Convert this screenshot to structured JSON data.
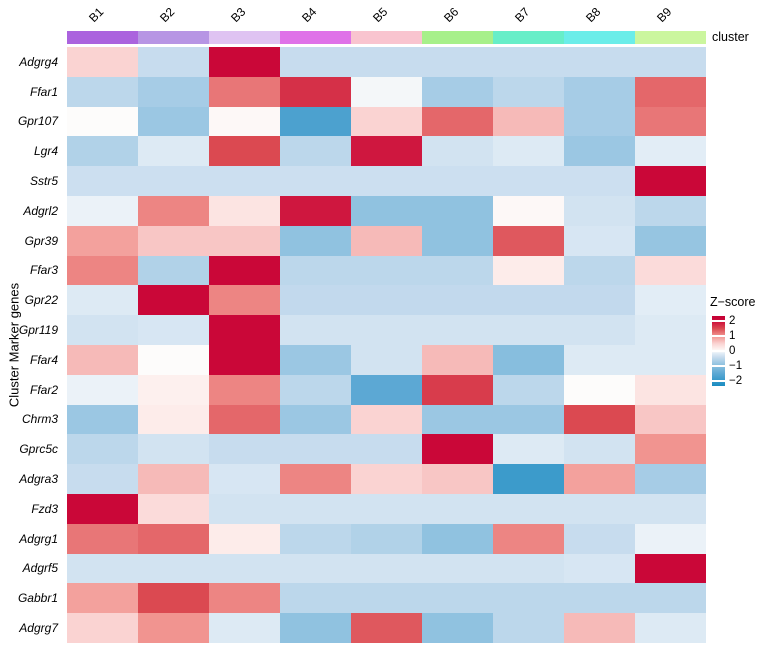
{
  "chart_data": {
    "type": "heatmap",
    "title": "",
    "xlabel": "",
    "ylabel": "Cluster Marker genes",
    "columns": [
      "B1",
      "B2",
      "B3",
      "B4",
      "B5",
      "B6",
      "B7",
      "B8",
      "B9"
    ],
    "cluster_annotation": {
      "label": "cluster",
      "colors": [
        "#AB63DE",
        "#B795E4",
        "#DFC3F2",
        "#DF72E8",
        "#F9C4CF",
        "#A7F08A",
        "#67EEC8",
        "#6BEDE9",
        "#CBF69E"
      ]
    },
    "rows": [
      "Adgrg4",
      "Ffar1",
      "Gpr107",
      "Lgr4",
      "Sstr5",
      "Adgrl2",
      "Gpr39",
      "Ffar3",
      "Gpr22",
      "Gpr119",
      "Ffar4",
      "Ffar2",
      "Chrm3",
      "Gprc5c",
      "Adgra3",
      "Fzd3",
      "Adgrg1",
      "Adgrf5",
      "Gabbr1",
      "Adgrg7"
    ],
    "values": [
      [
        0.5,
        -0.4,
        2.1,
        -0.4,
        -0.4,
        -0.4,
        -0.4,
        -0.4,
        -0.4
      ],
      [
        -0.5,
        -0.7,
        1.2,
        1.7,
        -0.05,
        -0.7,
        -0.5,
        -0.7,
        1.3
      ],
      [
        0.0,
        -0.8,
        0.05,
        -1.7,
        0.5,
        1.3,
        0.7,
        -0.7,
        1.2
      ],
      [
        -0.6,
        -0.2,
        1.5,
        -0.5,
        1.9,
        -0.3,
        -0.2,
        -0.8,
        -0.15
      ],
      [
        -0.35,
        -0.35,
        -0.35,
        -0.35,
        -0.35,
        -0.35,
        -0.35,
        -0.35,
        2.1
      ],
      [
        -0.1,
        1.1,
        0.3,
        1.9,
        -0.9,
        -0.9,
        0.05,
        -0.3,
        -0.5
      ],
      [
        0.9,
        0.6,
        0.6,
        -0.9,
        0.7,
        -0.9,
        1.4,
        -0.25,
        -0.85
      ],
      [
        1.1,
        -0.6,
        2.1,
        -0.5,
        -0.5,
        -0.5,
        0.2,
        -0.5,
        0.4
      ],
      [
        -0.2,
        2.1,
        1.1,
        -0.45,
        -0.45,
        -0.45,
        -0.45,
        -0.45,
        -0.15
      ],
      [
        -0.3,
        -0.25,
        2.1,
        -0.3,
        -0.3,
        -0.3,
        -0.3,
        -0.3,
        -0.2
      ],
      [
        0.7,
        0.0,
        2.1,
        -0.8,
        -0.3,
        0.7,
        -1.0,
        -0.2,
        -0.2
      ],
      [
        -0.1,
        0.15,
        1.1,
        -0.5,
        -1.5,
        1.6,
        -0.5,
        0.0,
        0.3
      ],
      [
        -0.8,
        0.2,
        1.3,
        -0.8,
        0.5,
        -0.8,
        -0.8,
        1.5,
        0.6
      ],
      [
        -0.5,
        -0.3,
        -0.4,
        -0.4,
        -0.4,
        2.1,
        -0.2,
        -0.3,
        1.0
      ],
      [
        -0.4,
        0.7,
        -0.25,
        1.1,
        0.5,
        0.6,
        -1.9,
        0.9,
        -0.7
      ],
      [
        2.1,
        0.4,
        -0.3,
        -0.3,
        -0.3,
        -0.3,
        -0.3,
        -0.3,
        -0.3
      ],
      [
        1.2,
        1.3,
        0.2,
        -0.5,
        -0.6,
        -0.9,
        1.1,
        -0.4,
        -0.1
      ],
      [
        -0.3,
        -0.3,
        -0.3,
        -0.3,
        -0.3,
        -0.3,
        -0.3,
        -0.25,
        2.1
      ],
      [
        0.9,
        1.5,
        1.1,
        -0.5,
        -0.5,
        -0.5,
        -0.5,
        -0.5,
        -0.5
      ],
      [
        0.5,
        1.0,
        -0.2,
        -0.9,
        1.4,
        -0.9,
        -0.5,
        0.7,
        -0.2
      ]
    ],
    "legend": {
      "title": "Z−score",
      "ticks": [
        2,
        1,
        0,
        -1,
        -2
      ],
      "range": [
        -2.33,
        2.33
      ]
    },
    "color_scale": [
      {
        "v": -2.33,
        "c": "#1A8CC1"
      },
      {
        "v": -1.5,
        "c": "#5CA8D4"
      },
      {
        "v": -0.9,
        "c": "#90C2E0"
      },
      {
        "v": -0.4,
        "c": "#C7DCEE"
      },
      {
        "v": -0.15,
        "c": "#E2EDF6"
      },
      {
        "v": 0.0,
        "c": "#FDFCFB"
      },
      {
        "v": 0.15,
        "c": "#FDF0EE"
      },
      {
        "v": 0.5,
        "c": "#FAD3D2"
      },
      {
        "v": 1.0,
        "c": "#F19490"
      },
      {
        "v": 1.5,
        "c": "#DB4951"
      },
      {
        "v": 2.0,
        "c": "#CC0A3A"
      },
      {
        "v": 2.33,
        "c": "#C40034"
      }
    ]
  }
}
